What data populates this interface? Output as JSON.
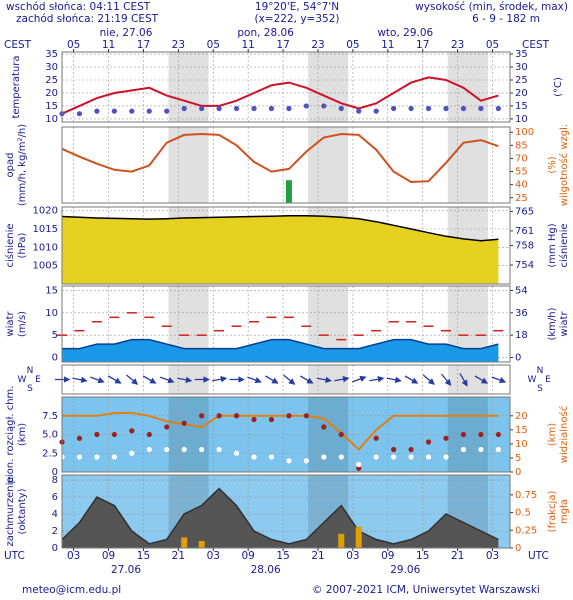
{
  "header": {
    "sunrise": "wschód słońca: 04:11 CEST",
    "sunset": "zachód słońca: 21:19 CEST",
    "coords": "19°20'E, 54°7'N",
    "grid": "(x=222, y=352)",
    "elevation_label": "wysokość (min, środek, max)",
    "elevation": "6 - 9 - 182 m",
    "tz_top": "CEST",
    "tz_bottom": "UTC",
    "days_top": [
      "nie, 27.06",
      "pon, 28.06",
      "wto, 29.06"
    ],
    "days_bottom": [
      "27.06",
      "28.06",
      "29.06"
    ]
  },
  "footer": {
    "email": "meteo@icm.edu.pl",
    "copyright": "© 2007-2021 ICM, Uniwersytet Warszawski"
  },
  "chart_data": [
    {
      "type": "line",
      "ylabel": [
        "temperatura"
      ],
      "y2label": [
        "(°C)"
      ],
      "x": [
        0,
        3,
        6,
        9,
        12,
        15,
        18,
        21,
        24,
        27,
        30,
        33,
        36,
        39,
        42,
        45,
        48,
        51,
        54,
        57,
        60,
        63,
        66,
        69,
        72,
        75
      ],
      "xlim": [
        0,
        77
      ],
      "xticks": [
        {
          "value": 2,
          "label": "05"
        },
        {
          "value": 8,
          "label": "11"
        },
        {
          "value": 14,
          "label": "17"
        },
        {
          "value": 20,
          "label": "23"
        },
        {
          "value": 26,
          "label": "05"
        },
        {
          "value": 32,
          "label": "11"
        },
        {
          "value": 38,
          "label": "17"
        },
        {
          "value": 44,
          "label": "23"
        },
        {
          "value": 50,
          "label": "05"
        },
        {
          "value": 56,
          "label": "11"
        },
        {
          "value": 62,
          "label": "17"
        },
        {
          "value": 68,
          "label": "23"
        },
        {
          "value": 74,
          "label": "05"
        }
      ],
      "ylim": [
        8.8,
        35.8
      ],
      "yticks": [
        10,
        15,
        20,
        25,
        30,
        35
      ],
      "y2lim": [
        8.8,
        35.8
      ],
      "y2ticks": [
        10,
        15,
        20,
        25,
        30,
        35
      ],
      "background": "#ffffff",
      "series": [
        {
          "type": "line",
          "color": "#d0102a",
          "values": [
            12,
            15,
            18,
            20,
            21,
            22,
            19,
            17,
            15,
            15,
            17,
            20,
            23,
            24,
            22,
            19,
            16,
            14,
            16,
            20,
            24,
            26,
            25,
            22,
            17,
            19
          ]
        },
        {
          "type": "dots",
          "color": "#5050c0",
          "values": [
            12,
            12,
            13,
            13,
            13,
            13,
            13,
            14,
            14,
            14,
            14,
            14,
            14,
            14,
            15,
            15,
            14,
            13,
            13,
            14,
            14,
            14,
            14,
            14,
            14,
            14
          ]
        }
      ]
    },
    {
      "type": "line",
      "ylabel": [
        "opad",
        "(mm/h, kg/m²/h)"
      ],
      "y2label": [
        "(%)",
        "wilgotność wzgl."
      ],
      "x": [
        0,
        3,
        6,
        9,
        12,
        15,
        18,
        21,
        24,
        27,
        30,
        33,
        36,
        39,
        42,
        45,
        48,
        51,
        54,
        57,
        60,
        63,
        66,
        69,
        72,
        75
      ],
      "xlim": [
        0,
        77
      ],
      "ylim": [
        0,
        5
      ],
      "y2lim": [
        19,
        106
      ],
      "y2ticks": [
        25,
        40,
        55,
        70,
        85,
        100
      ],
      "y2color": "#e06010",
      "background": "#ffffff",
      "series": [
        {
          "type": "line",
          "axis": "y2",
          "color": "#d05020",
          "values": [
            81,
            72,
            64,
            57,
            55,
            62,
            88,
            97,
            98,
            97,
            85,
            66,
            55,
            58,
            78,
            94,
            98,
            97,
            80,
            55,
            43,
            44,
            65,
            88,
            91,
            84
          ]
        },
        {
          "type": "bar",
          "color": "#20a040",
          "values": [
            0,
            0,
            0,
            0,
            0,
            0,
            0,
            0,
            0,
            0,
            0,
            0,
            0,
            1.5,
            0,
            0,
            0,
            0,
            0,
            0,
            0,
            0,
            0,
            0,
            0,
            0
          ]
        }
      ]
    },
    {
      "type": "area",
      "ylabel": [
        "ciśnienie",
        "(hPa)"
      ],
      "y2label": [
        "(mm Hg)",
        "ciśnienie"
      ],
      "x": [
        0,
        3,
        6,
        9,
        12,
        15,
        18,
        21,
        24,
        27,
        30,
        33,
        36,
        39,
        42,
        45,
        48,
        51,
        54,
        57,
        60,
        63,
        66,
        69,
        72,
        75
      ],
      "xlim": [
        0,
        77
      ],
      "ylim": [
        1000,
        1021
      ],
      "yticks": [
        1005,
        1010,
        1015,
        1020
      ],
      "y2lim": [
        750.1,
        765.9
      ],
      "y2ticks": [
        754,
        758,
        761,
        765
      ],
      "background": "#ffffff",
      "series": [
        {
          "type": "area",
          "color": "#000000",
          "fill": "#e6d020",
          "values": [
            1018.4,
            1018.2,
            1018,
            1017.9,
            1017.8,
            1017.7,
            1017.8,
            1018,
            1018.1,
            1018.2,
            1018.3,
            1018.4,
            1018.5,
            1018.6,
            1018.6,
            1018.5,
            1018.2,
            1017.8,
            1017,
            1016,
            1015,
            1014,
            1013,
            1012.3,
            1011.8,
            1012.2
          ]
        }
      ]
    },
    {
      "type": "area",
      "ylabel": [
        "wiatr",
        "(m/s)"
      ],
      "y2label": [
        "(km/h)",
        "wiatr"
      ],
      "x": [
        0,
        3,
        6,
        9,
        12,
        15,
        18,
        21,
        24,
        27,
        30,
        33,
        36,
        39,
        42,
        45,
        48,
        51,
        54,
        57,
        60,
        63,
        66,
        69,
        72,
        75
      ],
      "xlim": [
        0,
        77
      ],
      "ylim": [
        -1,
        16
      ],
      "yticks": [
        0,
        5,
        10,
        15
      ],
      "y2lim": [
        -3.6,
        57.6
      ],
      "y2ticks": [
        0,
        18,
        36,
        54
      ],
      "background": "#ffffff",
      "series": [
        {
          "type": "area",
          "color": "#0b3f8f",
          "fill": "#1a98e8",
          "values": [
            2,
            2,
            3,
            3,
            4,
            4,
            3,
            2,
            2,
            2,
            2,
            3,
            4,
            4,
            3,
            2,
            2,
            2,
            3,
            4,
            4,
            3,
            3,
            2,
            2,
            3
          ]
        },
        {
          "type": "dashes",
          "color": "#d02020",
          "values": [
            5,
            6,
            8,
            9,
            10,
            9,
            7,
            5,
            5,
            6,
            7,
            8,
            9,
            9,
            7,
            5,
            4,
            5,
            6,
            8,
            8,
            7,
            6,
            5,
            5,
            6
          ]
        }
      ]
    },
    {
      "type": "arrows",
      "compass": [
        "N",
        "E",
        "S",
        "W"
      ],
      "x": [
        0,
        3,
        6,
        9,
        12,
        15,
        18,
        21,
        24,
        27,
        30,
        33,
        36,
        39,
        42,
        45,
        48,
        51,
        54,
        57,
        60,
        63,
        66,
        69,
        72,
        75
      ],
      "xlim": [
        0,
        77
      ],
      "background": "#ffffff",
      "series": [
        {
          "type": "arrows",
          "color": "#2a3aa0",
          "values": [
            270,
            280,
            290,
            300,
            310,
            300,
            290,
            280,
            270,
            260,
            270,
            290,
            300,
            310,
            300,
            280,
            260,
            250,
            260,
            280,
            300,
            310,
            320,
            330,
            300,
            290
          ]
        }
      ]
    },
    {
      "type": "line",
      "ylabel": [
        "pion. rozciągł. chm.",
        "(km)"
      ],
      "y2label": [
        "(km)",
        "widzialność"
      ],
      "x": [
        0,
        3,
        6,
        9,
        12,
        15,
        18,
        21,
        24,
        27,
        30,
        33,
        36,
        39,
        42,
        45,
        48,
        51,
        54,
        57,
        60,
        63,
        66,
        69,
        72,
        75
      ],
      "xlim": [
        0,
        77
      ],
      "ylim": [
        0,
        10
      ],
      "yticks": [
        0,
        {
          "value": 2.5,
          "label": "2.5"
        },
        {
          "value": 5,
          "label": "5.0"
        },
        {
          "value": 7.5,
          "label": "7.5"
        }
      ],
      "y2lim": [
        0,
        26.7
      ],
      "y2ticks": [
        0,
        5,
        10,
        15,
        20
      ],
      "y2color": "#e06010",
      "background": "#7cc4ee",
      "series": [
        {
          "type": "line",
          "axis": "y2",
          "color": "#e08010",
          "values": [
            20,
            20,
            20,
            21,
            21,
            20,
            18,
            17,
            16,
            20,
            20,
            20,
            20,
            20,
            20,
            19,
            14,
            8,
            15,
            20,
            20,
            20,
            20,
            20,
            20,
            20
          ]
        },
        {
          "type": "dots",
          "color": "#a02020",
          "values": [
            4,
            4.5,
            5,
            5,
            5.5,
            5,
            6,
            6.5,
            7.5,
            7.5,
            7.5,
            7,
            7,
            7.5,
            7.5,
            6,
            5,
            0.5,
            4.5,
            3,
            3,
            4,
            4.5,
            5,
            5,
            5
          ]
        },
        {
          "type": "dots",
          "color": "#ffffff",
          "values": [
            2,
            2,
            2,
            2,
            2.5,
            3,
            3,
            3,
            3,
            3,
            2.5,
            2,
            2,
            1.5,
            1.5,
            2,
            2,
            1,
            2,
            2,
            2,
            2,
            2,
            3,
            3,
            3
          ]
        }
      ]
    },
    {
      "type": "area",
      "ylabel": [
        "zachmurzenie",
        "(oktanty)"
      ],
      "y2label": [
        "(frakcja)",
        "mgła"
      ],
      "x": [
        0,
        3,
        6,
        9,
        12,
        15,
        18,
        21,
        24,
        27,
        30,
        33,
        36,
        39,
        42,
        45,
        48,
        51,
        54,
        57,
        60,
        63,
        66,
        69,
        72,
        75
      ],
      "xlim": [
        0,
        77
      ],
      "xticks": [
        {
          "value": 2,
          "label": "03"
        },
        {
          "value": 8,
          "label": "09"
        },
        {
          "value": 14,
          "label": "15"
        },
        {
          "value": 20,
          "label": "21"
        },
        {
          "value": 26,
          "label": "03"
        },
        {
          "value": 32,
          "label": "09"
        },
        {
          "value": 38,
          "label": "15"
        },
        {
          "value": 44,
          "label": "21"
        },
        {
          "value": 50,
          "label": "03"
        },
        {
          "value": 56,
          "label": "09"
        },
        {
          "value": 62,
          "label": "15"
        },
        {
          "value": 68,
          "label": "21"
        },
        {
          "value": 74,
          "label": "03"
        }
      ],
      "ylim": [
        0,
        8.6
      ],
      "yticks": [
        0,
        2,
        4,
        6,
        8
      ],
      "y2lim": [
        0,
        1.03
      ],
      "y2ticks": [
        0,
        0.25,
        0.5,
        0.75
      ],
      "y2color": "#e06010",
      "background": "#8ccaf0",
      "series": [
        {
          "type": "area",
          "color": "#303030",
          "fill": "#555555",
          "values": [
            1,
            3,
            6,
            5,
            2,
            0.5,
            1,
            4,
            5,
            7,
            5,
            2,
            1,
            0.5,
            1,
            3,
            5,
            2,
            1,
            0.5,
            1,
            2,
            4,
            3,
            2,
            1
          ]
        },
        {
          "type": "bar",
          "axis": "y2",
          "color": "#e0a000",
          "values": [
            0,
            0,
            0,
            0,
            0,
            0,
            0,
            0.15,
            0.1,
            0,
            0,
            0,
            0,
            0,
            0,
            0,
            0.2,
            0.3,
            0,
            0,
            0,
            0,
            0,
            0,
            0,
            0
          ]
        }
      ]
    }
  ]
}
